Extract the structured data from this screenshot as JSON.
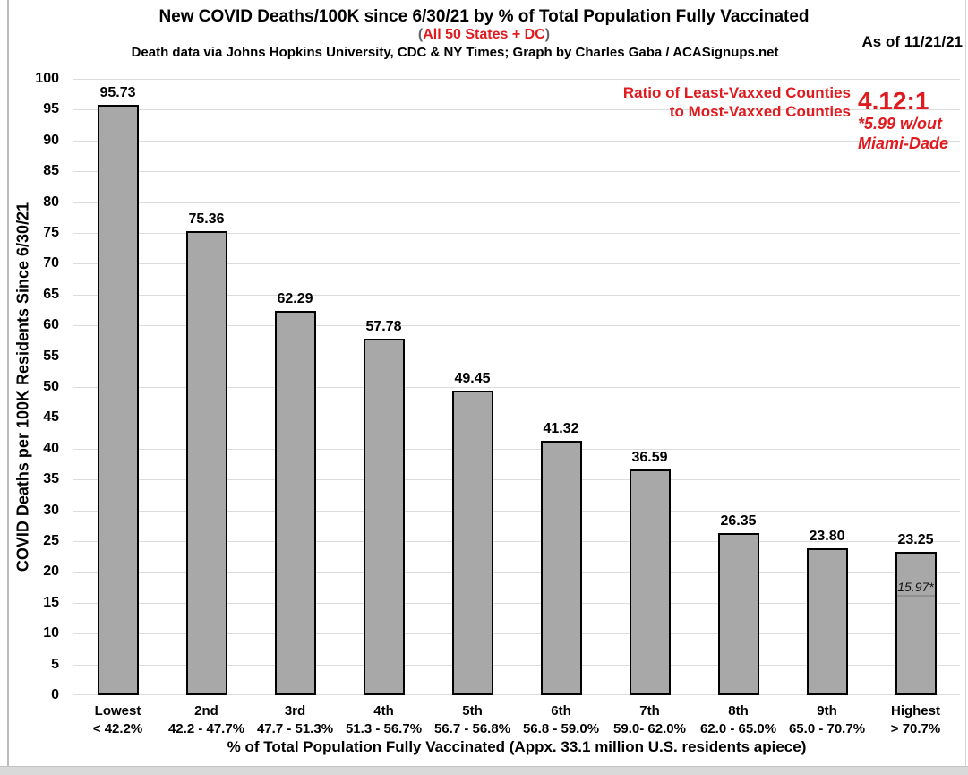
{
  "chart_data": {
    "type": "bar",
    "title": "New COVID Deaths/100K since 6/30/21 by % of Total Population Fully Vaccinated",
    "subtitle_paren_open": "(",
    "subtitle": "All 50 States + DC",
    "subtitle_paren_close": ")",
    "credit": "Death data via Johns Hopkins University, CDC & NY Times; Graph by Charles Gaba / ACASignups.net",
    "as_of": "As of 11/21/21",
    "xlabel": "% of Total Population Fully Vaccinated (Appx. 33.1 million U.S. residents apiece)",
    "ylabel": "COVID Deaths per 100K Residents Since 6/30/21",
    "ylim": [
      0,
      100
    ],
    "ytick_step": 5,
    "grid": true,
    "legend": null,
    "categories": [
      {
        "tier": "Lowest",
        "range": "< 42.2%"
      },
      {
        "tier": "2nd",
        "range": "42.2 - 47.7%"
      },
      {
        "tier": "3rd",
        "range": "47.7 - 51.3%"
      },
      {
        "tier": "4th",
        "range": "51.3 - 56.7%"
      },
      {
        "tier": "5th",
        "range": "56.7 - 56.8%"
      },
      {
        "tier": "6th",
        "range": "56.8 - 59.0%"
      },
      {
        "tier": "7th",
        "range": "59.0- 62.0%"
      },
      {
        "tier": "8th",
        "range": "62.0 - 65.0%"
      },
      {
        "tier": "9th",
        "range": "65.0 - 70.7%"
      },
      {
        "tier": "Highest",
        "range": "> 70.7%"
      }
    ],
    "values": [
      95.73,
      75.36,
      62.29,
      57.78,
      49.45,
      41.32,
      36.59,
      26.35,
      23.8,
      23.25
    ],
    "annotations": {
      "ratio_label_line1": "Ratio of Least-Vaxxed Counties",
      "ratio_label_line2": "to Most-Vaxxed Counties",
      "ratio_value": "4.12:1",
      "ratio_note_line1": "*5.99 w/out",
      "ratio_note_line2": "Miami-Dade",
      "inner_bar_note": {
        "bar_index": 9,
        "label": "15.97*",
        "value": 15.97
      }
    },
    "colors": {
      "bar_fill": "#a8a8a8",
      "bar_border": "#000000",
      "gridline": "#dcdcdc",
      "accent_red": "#e01b20",
      "paren_gray": "#666666"
    }
  }
}
